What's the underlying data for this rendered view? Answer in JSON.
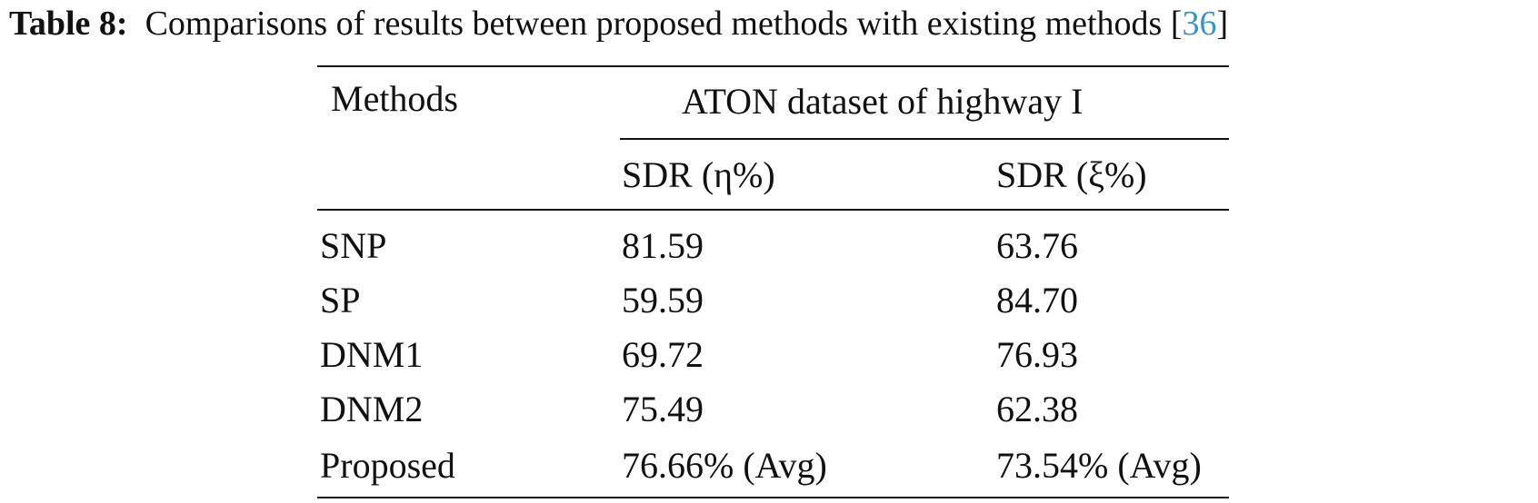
{
  "caption": {
    "label": "Table 8:",
    "text": "Comparisons of results between proposed methods with existing methods [",
    "ref": "36",
    "close": "]"
  },
  "table": {
    "header": {
      "methods": "Methods",
      "group": "ATON dataset of highway I",
      "col1": "SDR (η%)",
      "col2": "SDR (ξ%)"
    },
    "rows": [
      {
        "method": "SNP",
        "sdr_eta": "81.59",
        "sdr_xi": "63.76"
      },
      {
        "method": "SP",
        "sdr_eta": "59.59",
        "sdr_xi": "84.70"
      },
      {
        "method": "DNM1",
        "sdr_eta": "69.72",
        "sdr_xi": "76.93"
      },
      {
        "method": "DNM2",
        "sdr_eta": "75.49",
        "sdr_xi": "62.38"
      },
      {
        "method": "Proposed",
        "sdr_eta": "76.66% (Avg)",
        "sdr_xi": "73.54% (Avg)"
      }
    ]
  }
}
